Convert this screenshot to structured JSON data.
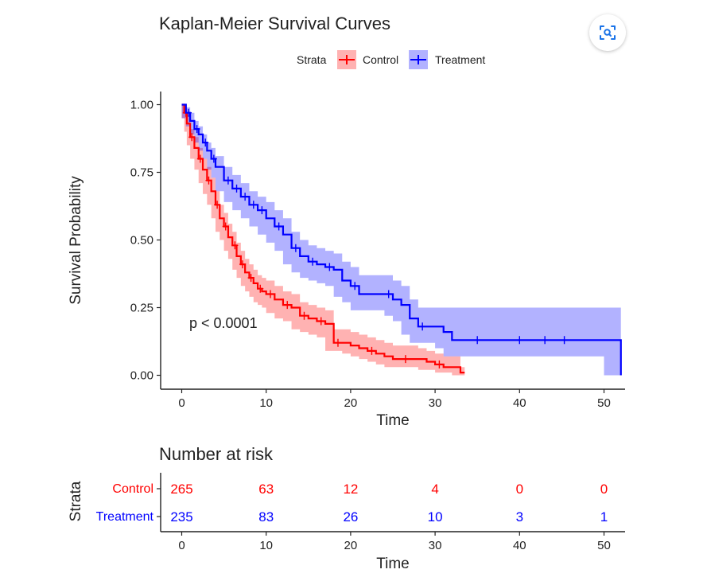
{
  "colors": {
    "control": "#ff0000",
    "treatment": "#0000ff",
    "axis": "#222222"
  },
  "overlay": {
    "lens_icon": "lens-search-icon"
  },
  "chart_data": [
    {
      "type": "line",
      "subtype": "kaplan-meier step curve with censor marks and confidence bands",
      "title": "Kaplan-Meier Survival Curves",
      "xlabel": "Time",
      "ylabel": "Survival Probability",
      "xlim": [
        0,
        52
      ],
      "ylim": [
        0,
        1
      ],
      "x_ticks": [
        0,
        10,
        20,
        30,
        40,
        50
      ],
      "y_ticks": [
        0,
        0.25,
        0.5,
        0.75,
        1
      ],
      "y_tick_labels": [
        "0.00",
        "0.25",
        "0.50",
        "0.75",
        "1.00"
      ],
      "grid": false,
      "legend": {
        "title": "Strata",
        "position": "top",
        "entries": [
          "Control",
          "Treatment"
        ]
      },
      "annotation": "p < 0.0001",
      "series": [
        {
          "name": "Control",
          "color": "#ff0000",
          "x": [
            0,
            0.3,
            0.6,
            1,
            1.5,
            2,
            2.5,
            3,
            3.5,
            4,
            4.5,
            5,
            5.5,
            6,
            6.5,
            7,
            7.5,
            8,
            8.5,
            9,
            9.5,
            10,
            11,
            12,
            13,
            14,
            15,
            16,
            17,
            18,
            19,
            20,
            21,
            22,
            23,
            24,
            25,
            26,
            27,
            28,
            29,
            30,
            31,
            32,
            33,
            33.5
          ],
          "y": [
            1.0,
            0.97,
            0.93,
            0.88,
            0.84,
            0.8,
            0.76,
            0.72,
            0.68,
            0.63,
            0.58,
            0.55,
            0.51,
            0.48,
            0.44,
            0.41,
            0.38,
            0.36,
            0.34,
            0.32,
            0.31,
            0.3,
            0.28,
            0.26,
            0.25,
            0.22,
            0.21,
            0.2,
            0.19,
            0.12,
            0.12,
            0.11,
            0.1,
            0.09,
            0.08,
            0.07,
            0.06,
            0.06,
            0.06,
            0.06,
            0.05,
            0.04,
            0.03,
            0.03,
            0.01,
            0.01
          ],
          "lower": [
            1.0,
            0.95,
            0.9,
            0.85,
            0.8,
            0.76,
            0.71,
            0.67,
            0.63,
            0.58,
            0.53,
            0.5,
            0.46,
            0.43,
            0.39,
            0.36,
            0.33,
            0.31,
            0.29,
            0.27,
            0.26,
            0.25,
            0.23,
            0.21,
            0.2,
            0.17,
            0.16,
            0.15,
            0.14,
            0.09,
            0.09,
            0.08,
            0.07,
            0.06,
            0.05,
            0.04,
            0.03,
            0.03,
            0.03,
            0.03,
            0.02,
            0.02,
            0.01,
            0.01,
            0.0,
            0.0
          ],
          "upper": [
            1.0,
            0.99,
            0.96,
            0.91,
            0.88,
            0.84,
            0.8,
            0.77,
            0.73,
            0.68,
            0.63,
            0.6,
            0.56,
            0.53,
            0.49,
            0.46,
            0.43,
            0.41,
            0.39,
            0.37,
            0.36,
            0.35,
            0.33,
            0.31,
            0.3,
            0.27,
            0.26,
            0.25,
            0.24,
            0.17,
            0.17,
            0.16,
            0.15,
            0.14,
            0.13,
            0.12,
            0.11,
            0.11,
            0.11,
            0.1,
            0.09,
            0.08,
            0.07,
            0.07,
            0.03,
            0.03
          ],
          "censor_x": [
            0.5,
            1.2,
            2.2,
            3.2,
            4.2,
            5.2,
            6.3,
            7.2,
            8.2,
            9.3,
            10.5,
            12.5,
            14.5,
            16.5,
            18.5,
            22.5,
            26.5,
            30.5
          ]
        },
        {
          "name": "Treatment",
          "color": "#0000ff",
          "x": [
            0,
            0.5,
            1,
            1.5,
            2,
            2.5,
            3,
            3.5,
            4,
            5,
            6,
            7,
            8,
            9,
            10,
            11,
            12,
            13,
            14,
            15,
            16,
            17,
            18,
            19,
            20,
            21,
            22,
            23,
            24,
            25,
            26,
            27,
            28,
            29,
            30,
            31,
            32,
            35,
            40,
            45,
            50,
            52
          ],
          "y": [
            1.0,
            0.97,
            0.94,
            0.91,
            0.89,
            0.86,
            0.83,
            0.8,
            0.77,
            0.72,
            0.69,
            0.66,
            0.63,
            0.61,
            0.58,
            0.55,
            0.52,
            0.47,
            0.44,
            0.42,
            0.41,
            0.4,
            0.39,
            0.35,
            0.33,
            0.3,
            0.3,
            0.3,
            0.3,
            0.28,
            0.26,
            0.21,
            0.18,
            0.18,
            0.18,
            0.16,
            0.13,
            0.13,
            0.13,
            0.13,
            0.13,
            0.0
          ],
          "lower": [
            1.0,
            0.95,
            0.92,
            0.89,
            0.86,
            0.83,
            0.8,
            0.76,
            0.73,
            0.68,
            0.64,
            0.61,
            0.58,
            0.55,
            0.52,
            0.49,
            0.46,
            0.41,
            0.38,
            0.36,
            0.35,
            0.34,
            0.33,
            0.29,
            0.27,
            0.24,
            0.24,
            0.24,
            0.24,
            0.22,
            0.2,
            0.15,
            0.12,
            0.12,
            0.12,
            0.1,
            0.07,
            0.07,
            0.07,
            0.07,
            0.07,
            0.0
          ],
          "upper": [
            1.0,
            0.99,
            0.97,
            0.94,
            0.92,
            0.89,
            0.86,
            0.84,
            0.81,
            0.77,
            0.74,
            0.71,
            0.68,
            0.66,
            0.64,
            0.61,
            0.58,
            0.53,
            0.5,
            0.48,
            0.47,
            0.46,
            0.45,
            0.42,
            0.4,
            0.37,
            0.37,
            0.37,
            0.37,
            0.35,
            0.33,
            0.28,
            0.25,
            0.25,
            0.25,
            0.25,
            0.25,
            0.25,
            0.25,
            0.25,
            0.25,
            0.25
          ],
          "censor_x": [
            0.8,
            1.8,
            2.8,
            3.8,
            5.5,
            6.5,
            7.5,
            8.5,
            9.5,
            11.5,
            13.5,
            15.5,
            17.5,
            20.5,
            24.5,
            28.5,
            35,
            40,
            43,
            45.3
          ]
        }
      ]
    },
    {
      "type": "table",
      "title": "Number at risk",
      "xlabel": "Time",
      "ylabel": "Strata",
      "xlim": [
        0,
        52
      ],
      "x_ticks": [
        0,
        10,
        20,
        30,
        40,
        50
      ],
      "rows": [
        {
          "name": "Control",
          "color": "#ff0000",
          "values": [
            265,
            63,
            12,
            4,
            0,
            0
          ]
        },
        {
          "name": "Treatment",
          "color": "#0000ff",
          "values": [
            235,
            83,
            26,
            10,
            3,
            1
          ]
        }
      ]
    }
  ]
}
